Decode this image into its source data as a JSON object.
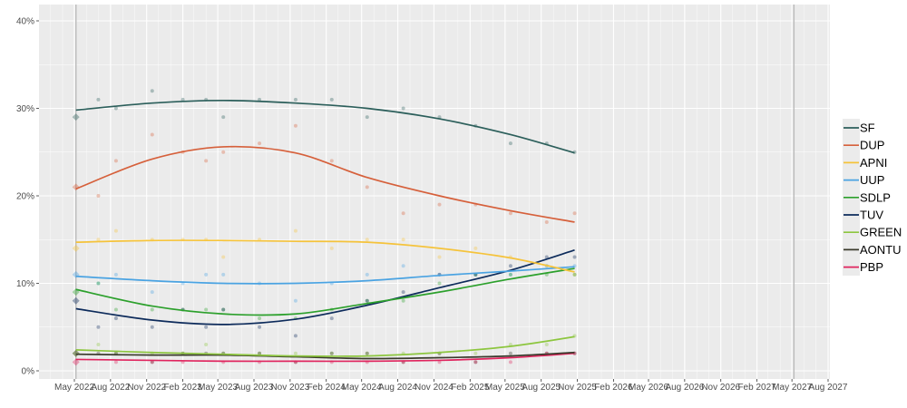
{
  "chart_data": {
    "type": "line",
    "title": "",
    "xlabel": "",
    "ylabel": "",
    "ylim": [
      0,
      40
    ],
    "y_ticks": [
      "0%",
      "10%",
      "20%",
      "30%",
      "40%"
    ],
    "x_range": [
      "2022-03-01",
      "2027-08-31"
    ],
    "x_ticks": [
      "May 2022",
      "Aug 2022",
      "Nov 2022",
      "Feb 2023",
      "May 2023",
      "Aug 2023",
      "Nov 2023",
      "Feb 2024",
      "May 2024",
      "Aug 2024",
      "Nov 2024",
      "Feb 2025",
      "May 2025",
      "Aug 2025",
      "Nov 2025",
      "Feb 2026",
      "May 2026",
      "Aug 2026",
      "Nov 2026",
      "Feb 2027",
      "May 2027",
      "Aug 2027"
    ],
    "x_tick_dates": [
      "2022-05-01",
      "2022-08-01",
      "2022-11-01",
      "2023-02-01",
      "2023-05-01",
      "2023-08-01",
      "2023-11-01",
      "2024-02-01",
      "2024-05-01",
      "2024-08-01",
      "2024-11-01",
      "2025-02-01",
      "2025-05-01",
      "2025-08-01",
      "2025-11-01",
      "2026-02-01",
      "2026-05-01",
      "2026-08-01",
      "2026-11-01",
      "2027-02-01",
      "2027-05-01",
      "2027-08-01"
    ],
    "vertical_markers": [
      "2022-05-05",
      "2027-05-06"
    ],
    "grid": true,
    "legend_position": "right",
    "poll_dates": [
      "2022-07-01",
      "2022-08-15",
      "2022-11-15",
      "2023-02-01",
      "2023-04-01",
      "2023-05-15",
      "2023-08-15",
      "2023-11-15",
      "2024-02-15",
      "2024-05-15",
      "2024-08-15",
      "2024-11-15",
      "2025-02-15",
      "2025-05-15",
      "2025-08-15",
      "2025-10-25"
    ],
    "trend_dates": [
      "2022-05-05",
      "2022-11-15",
      "2023-05-15",
      "2023-11-15",
      "2024-05-15",
      "2024-11-15",
      "2025-05-15",
      "2025-10-25"
    ],
    "series": [
      {
        "name": "SF",
        "color": "#2c5f5b",
        "election": 29,
        "polls": [
          31,
          30,
          32,
          31,
          31,
          29,
          31,
          31,
          31,
          29,
          30,
          29,
          28,
          26,
          26,
          25
        ],
        "trend": [
          29.8,
          30.6,
          30.9,
          30.6,
          30.0,
          28.8,
          27.0,
          24.9
        ]
      },
      {
        "name": "DUP",
        "color": "#d6603b",
        "election": 21,
        "polls": [
          20,
          24,
          27,
          25,
          24,
          25,
          26,
          28,
          24,
          21,
          18,
          19,
          19,
          18,
          17,
          18
        ],
        "trend": [
          20.8,
          24.2,
          25.6,
          24.9,
          22.1,
          20.0,
          18.3,
          17.0
        ]
      },
      {
        "name": "APNI",
        "color": "#f5c33b",
        "election": 14,
        "polls": [
          15,
          16,
          15,
          15,
          15,
          13,
          15,
          16,
          14,
          15,
          15,
          13,
          14,
          13,
          12,
          11
        ],
        "trend": [
          14.7,
          14.9,
          14.9,
          14.8,
          14.7,
          14.0,
          12.9,
          11.3
        ]
      },
      {
        "name": "UUP",
        "color": "#4aa3e2",
        "election": 11,
        "polls": [
          10,
          11,
          9,
          10,
          11,
          11,
          10,
          8,
          10,
          11,
          12,
          11,
          11,
          11,
          12,
          12
        ],
        "trend": [
          10.8,
          10.3,
          10.0,
          10.0,
          10.3,
          10.9,
          11.4,
          11.9
        ]
      },
      {
        "name": "SDLP",
        "color": "#2ca02c",
        "election": 9,
        "polls": [
          10,
          7,
          7,
          7,
          7,
          7,
          6,
          6,
          7,
          8,
          8,
          10,
          11,
          11,
          11,
          11
        ],
        "trend": [
          9.3,
          7.4,
          6.5,
          6.5,
          7.7,
          9.0,
          10.5,
          11.7
        ]
      },
      {
        "name": "TUV",
        "color": "#0d2b5b",
        "election": 8,
        "polls": [
          5,
          6,
          5,
          7,
          5,
          7,
          5,
          4,
          6,
          8,
          9,
          11,
          11,
          12,
          13,
          13
        ],
        "trend": [
          7.1,
          5.8,
          5.3,
          5.9,
          7.5,
          9.5,
          11.5,
          13.8
        ]
      },
      {
        "name": "GREEN",
        "color": "#8dc63f",
        "election": 2,
        "polls": [
          3,
          2,
          2,
          2,
          3,
          2,
          2,
          2,
          2,
          2,
          2,
          2,
          2,
          3,
          3,
          4
        ],
        "trend": [
          2.4,
          2.1,
          1.9,
          1.7,
          1.7,
          2.1,
          2.8,
          3.9
        ]
      },
      {
        "name": "AONTU",
        "color": "#3a3a2c",
        "election": 2,
        "polls": [
          2,
          2,
          1,
          2,
          2,
          2,
          2,
          1,
          2,
          2,
          1,
          2,
          1,
          2,
          2,
          2
        ],
        "trend": [
          1.9,
          1.8,
          1.8,
          1.6,
          1.4,
          1.5,
          1.7,
          2.1
        ]
      },
      {
        "name": "PBP",
        "color": "#e0245e",
        "election": 1,
        "polls": [
          null,
          1,
          1,
          1,
          null,
          1,
          1,
          1,
          1,
          1,
          1,
          1,
          1,
          1,
          2,
          2
        ],
        "trend": [
          1.3,
          1.2,
          1.1,
          1.1,
          1.1,
          1.2,
          1.5,
          2.0
        ]
      }
    ]
  }
}
